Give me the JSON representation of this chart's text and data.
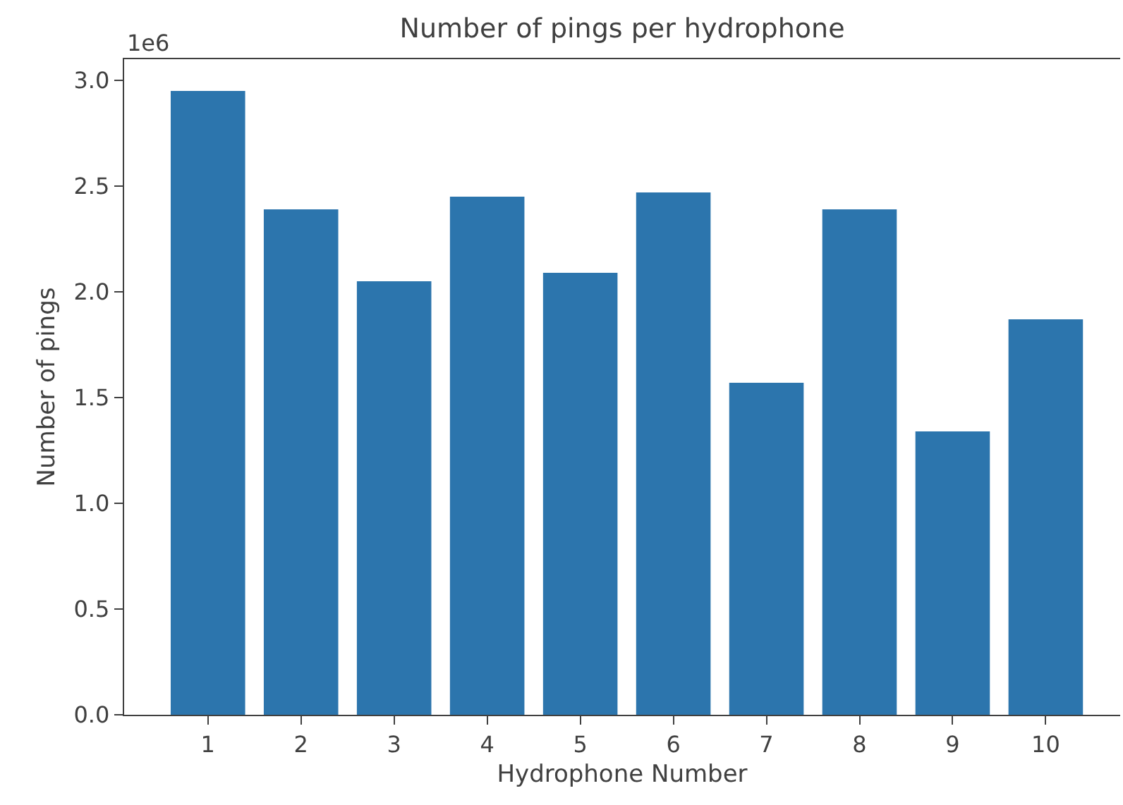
{
  "chart_data": {
    "type": "bar",
    "title": "Number of pings per hydrophone",
    "xlabel": "Hydrophone Number",
    "ylabel": "Number of pings",
    "annotations": [
      "1e6"
    ],
    "categories": [
      "1",
      "2",
      "3",
      "4",
      "5",
      "6",
      "7",
      "8",
      "9",
      "10"
    ],
    "values": [
      2.95,
      2.39,
      2.05,
      2.45,
      2.09,
      2.47,
      1.57,
      2.39,
      1.34,
      1.87
    ],
    "color": "#2c75ad",
    "ylim": [
      0,
      3.1
    ],
    "yticks": [
      {
        "value": 0,
        "label": "0.0"
      },
      {
        "value": 0.5,
        "label": "0.5"
      },
      {
        "value": 1,
        "label": "1.0"
      },
      {
        "value": 1.5,
        "label": "1.5"
      },
      {
        "value": 2,
        "label": "2.0"
      },
      {
        "value": 2.5,
        "label": "2.5"
      },
      {
        "value": 3,
        "label": "3.0"
      }
    ],
    "legend": false
  }
}
